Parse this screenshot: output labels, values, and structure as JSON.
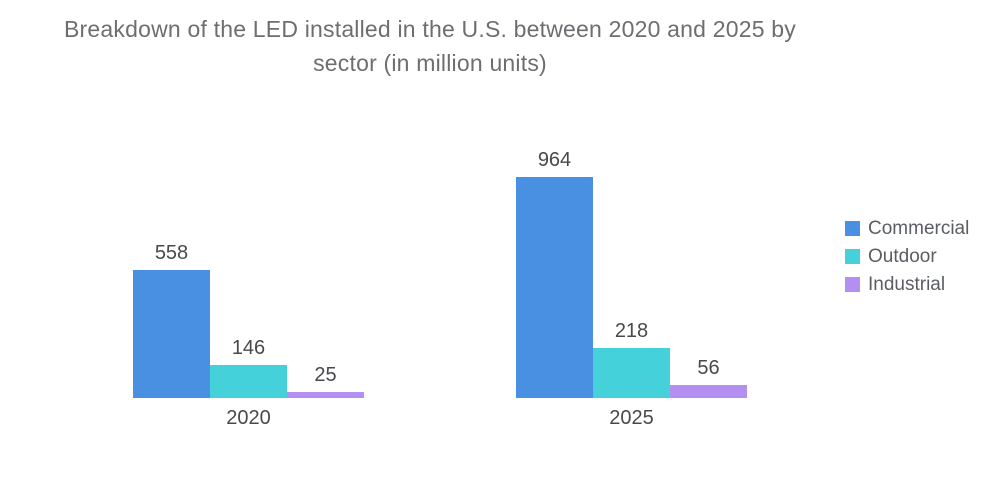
{
  "chart_data": {
    "type": "bar",
    "title": "Breakdown of the LED installed in the U.S. between 2020 and 2025 by sector (in million units)",
    "title_line1": "Breakdown of the LED installed in the U.S. between 2020 and 2025 by",
    "title_line2": "sector (in million units)",
    "unit": "million units",
    "categories": [
      "2020",
      "2025"
    ],
    "series": [
      {
        "name": "Commercial",
        "color": "#4a90e2",
        "values": [
          558,
          964
        ]
      },
      {
        "name": "Outdoor",
        "color": "#45d1d9",
        "values": [
          146,
          218
        ]
      },
      {
        "name": "Industrial",
        "color": "#b48ff2",
        "values": [
          25,
          56
        ]
      }
    ],
    "ylim": [
      0,
      964
    ],
    "grid": false,
    "y_axis_visible": false,
    "legend_position": "right",
    "legend": [
      "Commercial",
      "Outdoor",
      "Industrial"
    ],
    "colors": {
      "title_text": "#6d6e71",
      "label_text": "#47494c",
      "legend_text": "#5a5e62"
    }
  }
}
